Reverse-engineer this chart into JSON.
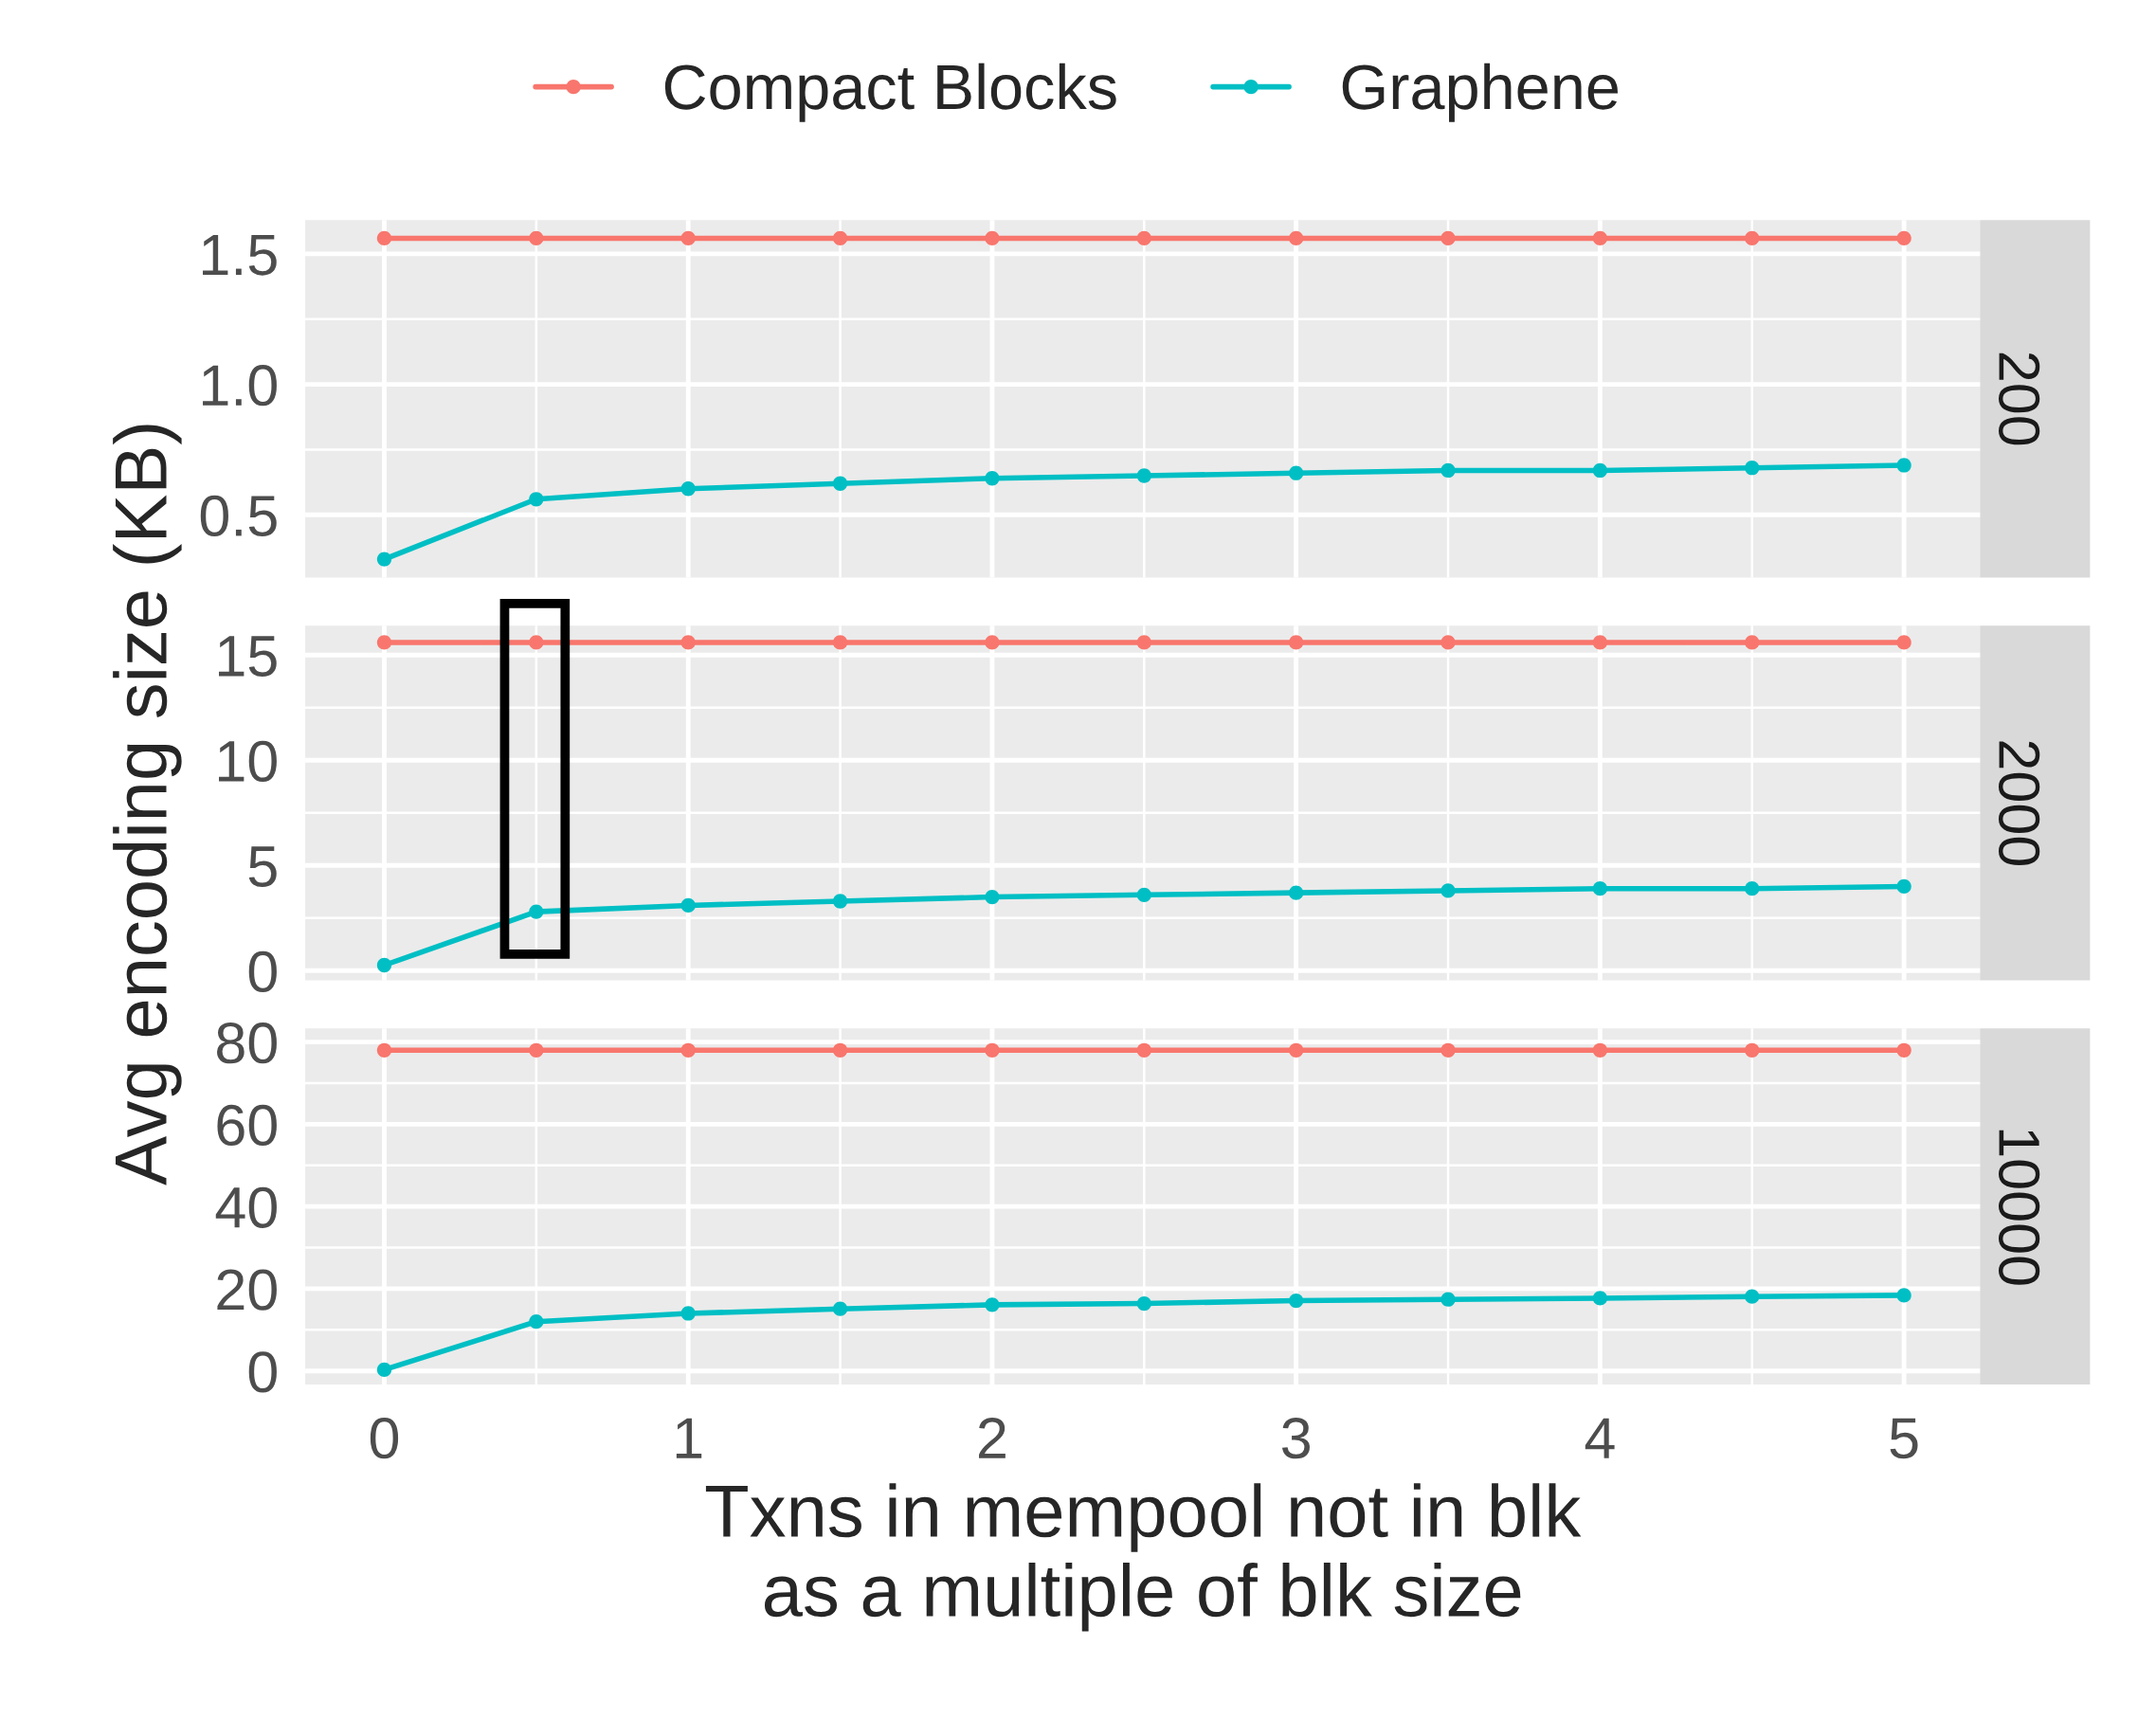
{
  "chart_data": [
    {
      "type": "line",
      "y2label": "200",
      "x": [
        0,
        0.5,
        1,
        1.5,
        2,
        2.5,
        3,
        3.5,
        4,
        4.5,
        5
      ],
      "xlim": [
        -0.26,
        5.25
      ],
      "xticks": [
        0,
        1,
        2,
        3,
        4,
        5
      ],
      "ylim": [
        0.26,
        1.63
      ],
      "yticks": [
        0.5,
        {
          "value": 1.0,
          "label": "1.0"
        },
        1.5
      ],
      "tick_labels": "y",
      "grid": true,
      "marker": "circle",
      "legend": "top",
      "series": [
        {
          "name": "Compact Blocks",
          "color": "#f8766d",
          "values": [
            1.56,
            1.56,
            1.56,
            1.56,
            1.56,
            1.56,
            1.56,
            1.56,
            1.56,
            1.56,
            1.56
          ]
        },
        {
          "name": "Graphene",
          "color": "#00bfc4",
          "values": [
            0.33,
            0.56,
            0.6,
            0.62,
            0.64,
            0.65,
            0.66,
            0.67,
            0.67,
            0.68,
            0.69
          ]
        }
      ]
    },
    {
      "type": "line",
      "y2label": "2000",
      "ylabel": "Avg encoding size (KB)",
      "x": [
        0,
        0.5,
        1,
        1.5,
        2,
        2.5,
        3,
        3.5,
        4,
        4.5,
        5
      ],
      "xlim": [
        -0.26,
        5.25
      ],
      "xticks": [
        0,
        1,
        2,
        3,
        4,
        5
      ],
      "ylim": [
        -0.46,
        16.4
      ],
      "yticks": [
        0,
        5,
        10,
        15
      ],
      "tick_labels": "y",
      "grid": true,
      "marker": "circle",
      "series": [
        {
          "color": "#f8766d",
          "values": [
            15.6,
            15.6,
            15.6,
            15.6,
            15.6,
            15.6,
            15.6,
            15.6,
            15.6,
            15.6,
            15.6
          ]
        },
        {
          "color": "#00bfc4",
          "values": [
            0.26,
            2.8,
            3.1,
            3.3,
            3.5,
            3.6,
            3.7,
            3.8,
            3.9,
            3.9,
            4.0
          ]
        }
      ]
    },
    {
      "type": "line",
      "y2label": "10000",
      "xlabel": "Txns in mempool not in blk\nas a multiple of blk size",
      "x": [
        0,
        0.5,
        1,
        1.5,
        2,
        2.5,
        3,
        3.5,
        4,
        4.5,
        5
      ],
      "xlim": [
        -0.26,
        5.25
      ],
      "xticks": [
        0,
        1,
        2,
        3,
        4,
        5
      ],
      "ylim": [
        -3.3,
        83.3
      ],
      "yticks": [
        0,
        20,
        40,
        60,
        80
      ],
      "grid": true,
      "marker": "circle",
      "series": [
        {
          "color": "#f8766d",
          "values": [
            78,
            78,
            78,
            78,
            78,
            78,
            78,
            78,
            78,
            78,
            78
          ]
        },
        {
          "color": "#00bfc4",
          "values": [
            0.3,
            12.0,
            14.0,
            15.1,
            16.1,
            16.4,
            17.1,
            17.4,
            17.7,
            18.1,
            18.4
          ]
        }
      ]
    }
  ]
}
